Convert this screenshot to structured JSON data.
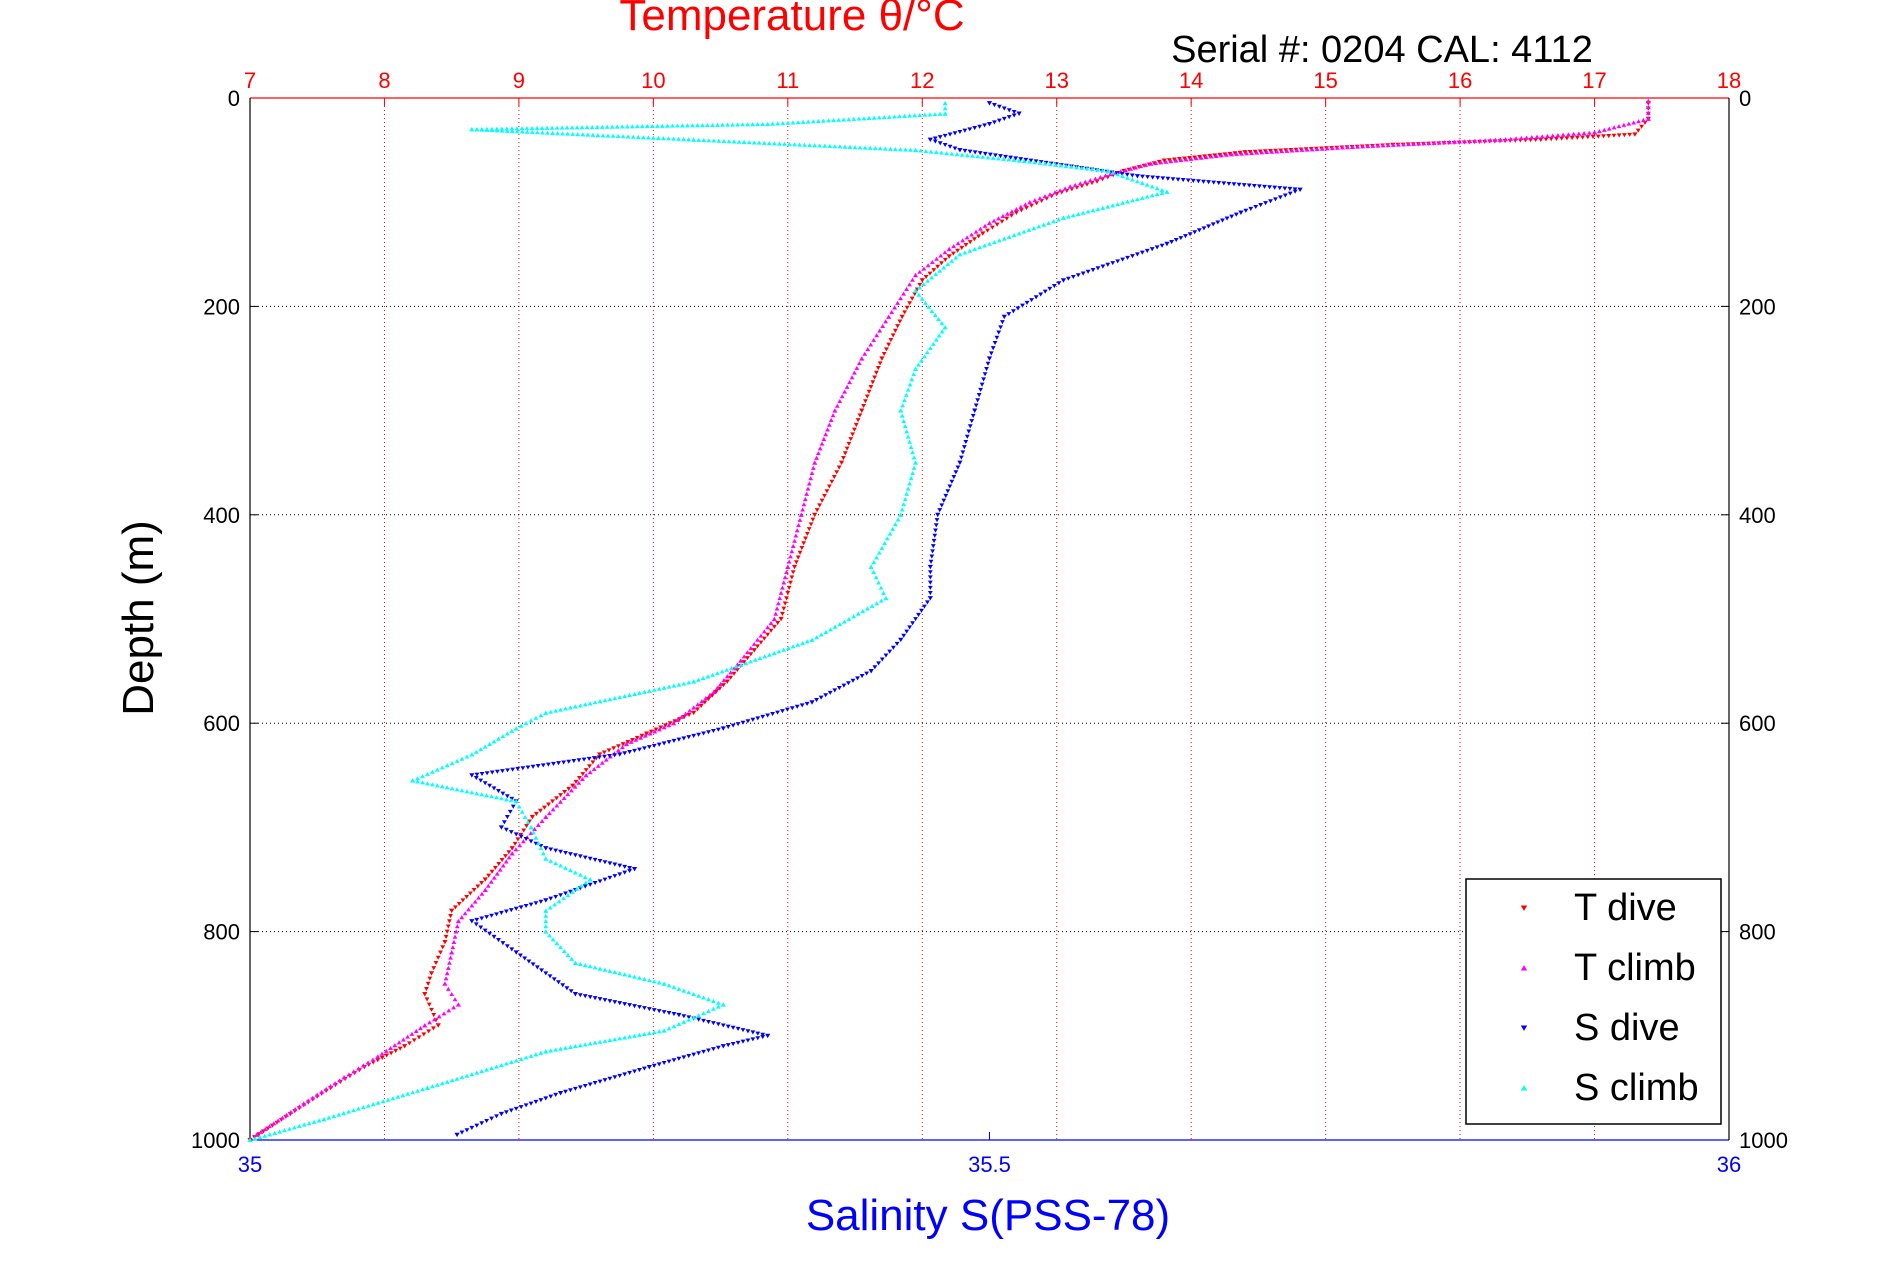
{
  "chart_data": {
    "type": "scatter",
    "title_top": "Temperature θ/°C",
    "subtitle": "Serial #: 0204  CAL: 4112",
    "ylabel": "Depth (m)",
    "xlabel_bottom": "Salinity S(PSS-78)",
    "top_axis": {
      "range": [
        7,
        18
      ],
      "ticks": [
        "7",
        "8",
        "9",
        "10",
        "11",
        "12",
        "13",
        "14",
        "15",
        "16",
        "17",
        "18"
      ],
      "color": "#ff0000",
      "grid": true
    },
    "bottom_axis": {
      "range": [
        35,
        36
      ],
      "ticks": [
        "35",
        "35.5",
        "36"
      ],
      "color": "#0000ff"
    },
    "y_axis": {
      "range": [
        0,
        1000
      ],
      "reversed": true,
      "ticks": [
        "0",
        "200",
        "400",
        "600",
        "800",
        "1000"
      ],
      "grid": true
    },
    "legend_position": "bottom-right",
    "series": [
      {
        "name": "T dive",
        "axis": "top",
        "color": "#ff0000",
        "marker": "triangle-down",
        "points": [
          [
            17.4,
            5
          ],
          [
            17.4,
            20
          ],
          [
            17.3,
            35
          ],
          [
            16.6,
            40
          ],
          [
            15.5,
            45
          ],
          [
            14.4,
            52
          ],
          [
            13.8,
            60
          ],
          [
            13.5,
            70
          ],
          [
            13.3,
            80
          ],
          [
            13.0,
            92
          ],
          [
            12.7,
            110
          ],
          [
            12.45,
            130
          ],
          [
            12.2,
            152
          ],
          [
            12.0,
            175
          ],
          [
            11.85,
            210
          ],
          [
            11.7,
            250
          ],
          [
            11.55,
            300
          ],
          [
            11.4,
            350
          ],
          [
            11.2,
            400
          ],
          [
            11.05,
            450
          ],
          [
            10.95,
            500
          ],
          [
            10.75,
            530
          ],
          [
            10.55,
            560
          ],
          [
            10.3,
            590
          ],
          [
            9.95,
            610
          ],
          [
            9.6,
            630
          ],
          [
            9.4,
            660
          ],
          [
            9.1,
            690
          ],
          [
            8.95,
            720
          ],
          [
            8.75,
            750
          ],
          [
            8.5,
            780
          ],
          [
            8.45,
            810
          ],
          [
            8.35,
            840
          ],
          [
            8.3,
            860
          ],
          [
            8.4,
            890
          ],
          [
            8.15,
            910
          ],
          [
            7.85,
            930
          ],
          [
            7.6,
            950
          ],
          [
            7.3,
            975
          ],
          [
            7.0,
            1000
          ]
        ]
      },
      {
        "name": "T climb",
        "axis": "top",
        "color": "#ff00ff",
        "marker": "triangle-up",
        "points": [
          [
            17.4,
            3
          ],
          [
            17.4,
            20
          ],
          [
            17.0,
            33
          ],
          [
            16.3,
            40
          ],
          [
            15.2,
            47
          ],
          [
            14.3,
            54
          ],
          [
            13.7,
            63
          ],
          [
            13.4,
            73
          ],
          [
            13.1,
            85
          ],
          [
            12.8,
            100
          ],
          [
            12.5,
            120
          ],
          [
            12.2,
            145
          ],
          [
            11.95,
            170
          ],
          [
            11.75,
            210
          ],
          [
            11.55,
            250
          ],
          [
            11.35,
            300
          ],
          [
            11.2,
            350
          ],
          [
            11.1,
            400
          ],
          [
            11.0,
            450
          ],
          [
            10.9,
            500
          ],
          [
            10.65,
            540
          ],
          [
            10.45,
            570
          ],
          [
            10.15,
            600
          ],
          [
            9.8,
            620
          ],
          [
            9.5,
            650
          ],
          [
            9.2,
            690
          ],
          [
            8.95,
            725
          ],
          [
            8.75,
            760
          ],
          [
            8.55,
            790
          ],
          [
            8.5,
            820
          ],
          [
            8.45,
            850
          ],
          [
            8.55,
            870
          ],
          [
            8.3,
            890
          ],
          [
            7.95,
            920
          ],
          [
            7.7,
            940
          ],
          [
            7.4,
            965
          ],
          [
            7.05,
            995
          ]
        ]
      },
      {
        "name": "S dive",
        "axis": "bottom",
        "color": "#0000ff",
        "marker": "triangle-down",
        "points": [
          [
            35.5,
            5
          ],
          [
            35.52,
            15
          ],
          [
            35.5,
            25
          ],
          [
            35.46,
            40
          ],
          [
            35.48,
            50
          ],
          [
            35.6,
            75
          ],
          [
            35.71,
            88
          ],
          [
            35.67,
            110
          ],
          [
            35.62,
            140
          ],
          [
            35.55,
            175
          ],
          [
            35.51,
            210
          ],
          [
            35.5,
            250
          ],
          [
            35.49,
            300
          ],
          [
            35.48,
            350
          ],
          [
            35.465,
            400
          ],
          [
            35.46,
            450
          ],
          [
            35.46,
            480
          ],
          [
            35.44,
            520
          ],
          [
            35.42,
            550
          ],
          [
            35.38,
            580
          ],
          [
            35.32,
            605
          ],
          [
            35.25,
            630
          ],
          [
            35.15,
            650
          ],
          [
            35.18,
            675
          ],
          [
            35.17,
            700
          ],
          [
            35.2,
            720
          ],
          [
            35.26,
            740
          ],
          [
            35.2,
            770
          ],
          [
            35.15,
            790
          ],
          [
            35.18,
            820
          ],
          [
            35.22,
            860
          ],
          [
            35.29,
            880
          ],
          [
            35.35,
            900
          ],
          [
            35.32,
            910
          ],
          [
            35.27,
            930
          ],
          [
            35.21,
            955
          ],
          [
            35.17,
            975
          ],
          [
            35.14,
            995
          ]
        ]
      },
      {
        "name": "S climb",
        "axis": "bottom",
        "color": "#00ffff",
        "marker": "triangle-up",
        "points": [
          [
            35.47,
            5
          ],
          [
            35.47,
            15
          ],
          [
            35.35,
            25
          ],
          [
            35.15,
            30
          ],
          [
            35.3,
            40
          ],
          [
            35.45,
            50
          ],
          [
            35.52,
            60
          ],
          [
            35.58,
            70
          ],
          [
            35.62,
            90
          ],
          [
            35.55,
            115
          ],
          [
            35.48,
            150
          ],
          [
            35.45,
            185
          ],
          [
            35.47,
            220
          ],
          [
            35.45,
            260
          ],
          [
            35.44,
            300
          ],
          [
            35.45,
            350
          ],
          [
            35.44,
            400
          ],
          [
            35.42,
            450
          ],
          [
            35.43,
            480
          ],
          [
            35.38,
            520
          ],
          [
            35.3,
            560
          ],
          [
            35.2,
            590
          ],
          [
            35.18,
            605
          ],
          [
            35.15,
            630
          ],
          [
            35.11,
            655
          ],
          [
            35.18,
            675
          ],
          [
            35.19,
            700
          ],
          [
            35.2,
            730
          ],
          [
            35.23,
            750
          ],
          [
            35.2,
            780
          ],
          [
            35.2,
            800
          ],
          [
            35.22,
            830
          ],
          [
            35.28,
            850
          ],
          [
            35.32,
            870
          ],
          [
            35.28,
            895
          ],
          [
            35.2,
            915
          ],
          [
            35.12,
            950
          ],
          [
            35.05,
            980
          ],
          [
            35.0,
            1000
          ]
        ]
      }
    ]
  }
}
